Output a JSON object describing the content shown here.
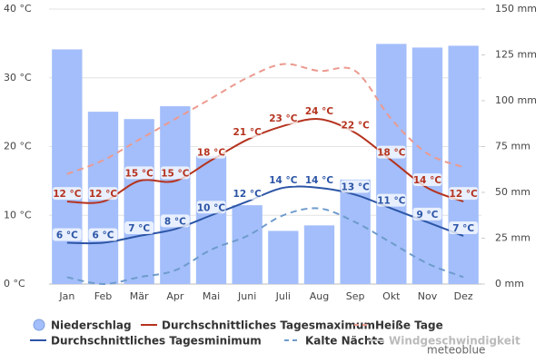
{
  "chart_data": {
    "type": "combo",
    "categories": [
      "Jan",
      "Feb",
      "Mär",
      "Apr",
      "Mai",
      "Juni",
      "Juli",
      "Aug",
      "Sep",
      "Okt",
      "Nov",
      "Dez"
    ],
    "ylim": [
      0,
      40
    ],
    "yticks": [
      {
        "value": 0,
        "label": "0 °C"
      },
      {
        "value": 10,
        "label": "10 °C"
      },
      {
        "value": 20,
        "label": "20 °C"
      },
      {
        "value": 30,
        "label": "30 °C"
      },
      {
        "value": 40,
        "label": "40 °C"
      }
    ],
    "y2lim": [
      0,
      150
    ],
    "y2ticks": [
      {
        "value": 0,
        "label": "0 mm"
      },
      {
        "value": 25,
        "label": "25 mm"
      },
      {
        "value": 50,
        "label": "50 mm"
      },
      {
        "value": 75,
        "label": "75 mm"
      },
      {
        "value": 100,
        "label": "100 mm"
      },
      {
        "value": 125,
        "label": "125 mm"
      },
      {
        "value": 150,
        "label": "150 mm"
      }
    ],
    "grid": true,
    "series": [
      {
        "name": "Niederschlag",
        "type": "bar",
        "axis": "y2",
        "color": "#a3befa",
        "values": [
          128,
          94,
          90,
          97,
          70,
          43,
          29,
          32,
          57,
          131,
          129,
          130
        ]
      },
      {
        "name": "Durchschnittliches Tagesmaximum",
        "type": "line",
        "color": "#b5331f",
        "values": [
          12,
          12,
          15,
          15,
          18,
          21,
          23,
          24,
          22,
          18,
          14,
          12
        ],
        "value_labels": [
          "12 °C",
          "12 °C",
          "15 °C",
          "15 °C",
          "18 °C",
          "21 °C",
          "23 °C",
          "24 °C",
          "22 °C",
          "18 °C",
          "14 °C",
          "12 °C"
        ]
      },
      {
        "name": "Heiße Tage",
        "type": "line",
        "dash": true,
        "color": "#ec9a8f",
        "values": [
          16,
          18,
          21,
          24,
          27,
          30,
          32,
          31,
          31,
          24,
          19,
          17
        ]
      },
      {
        "name": "Durchschnittliches Tagesminimum",
        "type": "line",
        "color": "#2c55a6",
        "values": [
          6,
          6,
          7,
          8,
          10,
          12,
          14,
          14,
          13,
          11,
          9,
          7
        ],
        "value_labels": [
          "6 °C",
          "6 °C",
          "7 °C",
          "8 °C",
          "10 °C",
          "12 °C",
          "14 °C",
          "14 °C",
          "13 °C",
          "11 °C",
          "9 °C",
          "7 °C"
        ]
      },
      {
        "name": "Kalte Nächte",
        "type": "line",
        "dash": true,
        "color": "#6e9bcc",
        "values": [
          1,
          0,
          1,
          2,
          5,
          7,
          10,
          11,
          9,
          6,
          3,
          1
        ]
      },
      {
        "name": "Windgeschwindigkeit",
        "type": "line",
        "color": "#cccccc",
        "values": [
          null,
          null,
          null,
          null,
          null,
          null,
          null,
          null,
          null,
          null,
          null,
          null
        ]
      }
    ],
    "watermark": "meteoblue"
  }
}
